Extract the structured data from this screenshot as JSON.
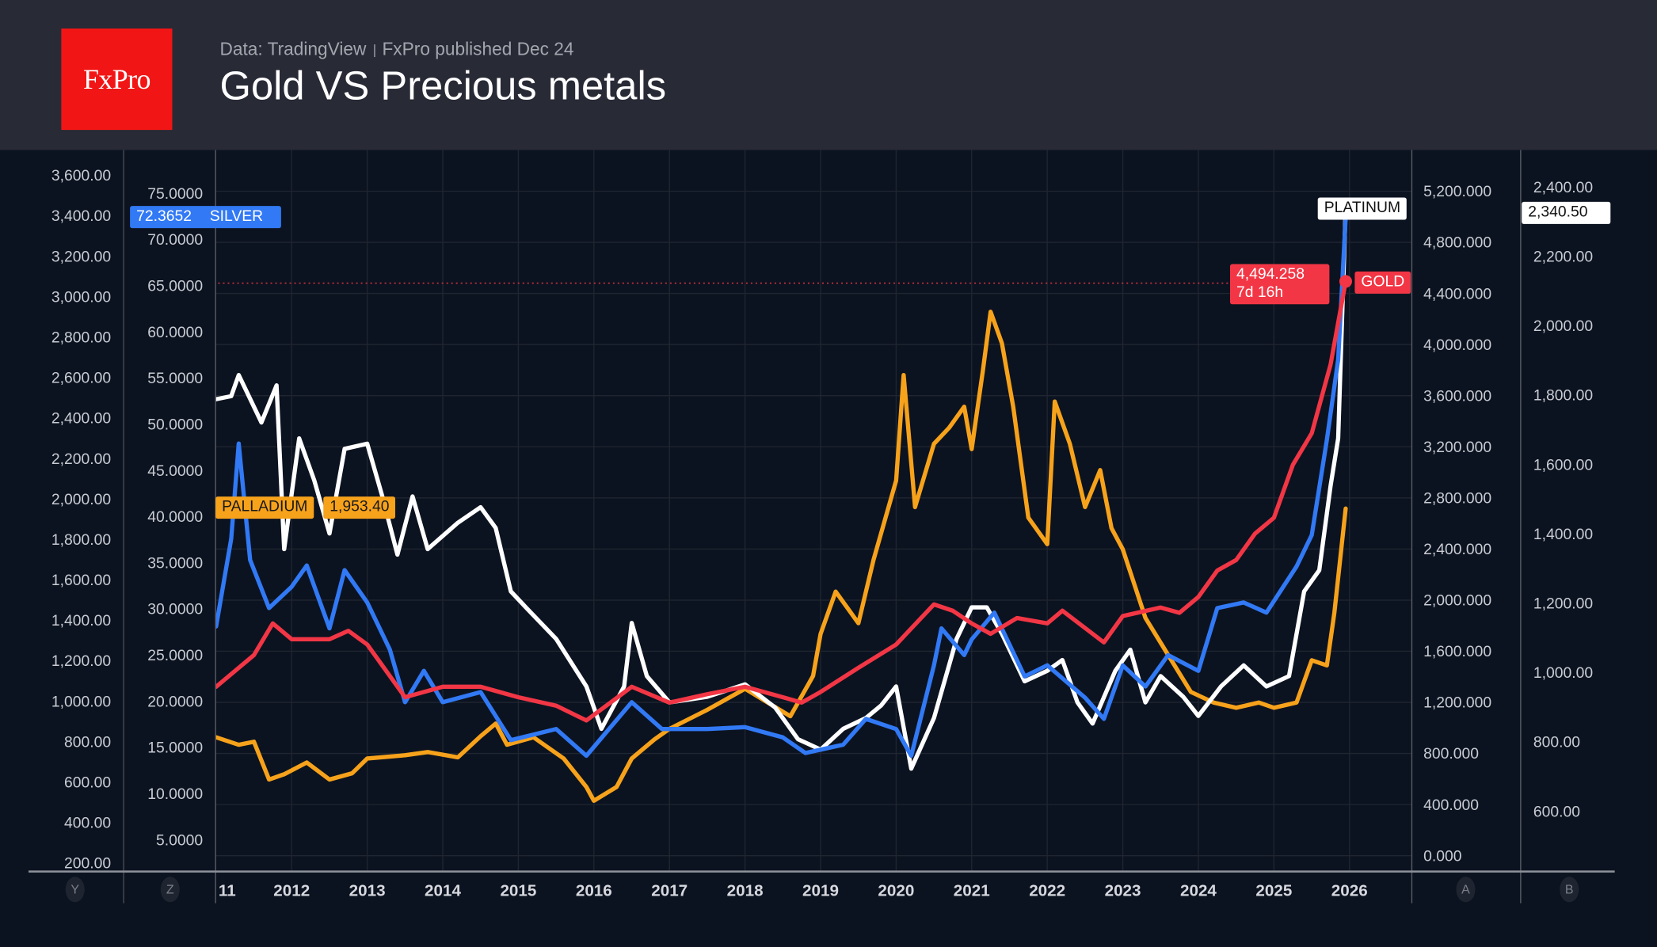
{
  "header": {
    "logo_text": "FxPro",
    "source": "Data: TradingView",
    "published": "FxPro published Dec 24",
    "title": "Gold VS Precious metals"
  },
  "colors": {
    "gold": "#f23645",
    "silver": "#3179f5",
    "platinum": "#ffffff",
    "palladium": "#f7a21b",
    "background": "#0c1320",
    "header": "#282a36"
  },
  "axis_letters": {
    "y": "Y",
    "z": "Z",
    "a": "A",
    "b": "B"
  },
  "badges": {
    "silver_value": "72.3652",
    "silver_label": "SILVER",
    "palladium_value": "1,953.40",
    "palladium_label": "PALLADIUM",
    "platinum_label": "PLATINUM",
    "platinum_value": "2,340.50",
    "gold_label": "GOLD",
    "gold_value": "4,494.258",
    "gold_countdown": "7d 16h"
  },
  "chart_data": {
    "type": "line",
    "title": "Gold VS Precious metals",
    "grid": true,
    "x_ticks": [
      "11",
      "2012",
      "2013",
      "2014",
      "2015",
      "2016",
      "2017",
      "2018",
      "2019",
      "2020",
      "2021",
      "2022",
      "2023",
      "2024",
      "2025",
      "2026"
    ],
    "axes": {
      "Y": {
        "series": "Palladium",
        "range": [
          200,
          3600
        ],
        "ticks": [
          "3,600.00",
          "3,400.00",
          "3,200.00",
          "3,000.00",
          "2,800.00",
          "2,600.00",
          "2,400.00",
          "2,200.00",
          "2,000.00",
          "1,800.00",
          "1,600.00",
          "1,400.00",
          "1,200.00",
          "1,000.00",
          "800.00",
          "600.00",
          "400.00",
          "200.00"
        ]
      },
      "Z": {
        "series": "Silver",
        "range": [
          5,
          75
        ],
        "ticks": [
          "75.0000",
          "70.0000",
          "65.0000",
          "60.0000",
          "55.0000",
          "50.0000",
          "45.0000",
          "40.0000",
          "35.0000",
          "30.0000",
          "25.0000",
          "20.0000",
          "15.0000",
          "10.0000",
          "5.0000"
        ]
      },
      "A": {
        "series": "Gold",
        "range": [
          0,
          5200
        ],
        "ticks": [
          "5,200.000",
          "4,800.000",
          "4,400.000",
          "4,000.000",
          "3,600.000",
          "3,200.000",
          "2,800.000",
          "2,400.000",
          "2,000.000",
          "1,600.000",
          "1,200.000",
          "800.000",
          "400.000",
          "0.000"
        ]
      },
      "B": {
        "series": "Platinum",
        "range": [
          600,
          2400
        ],
        "ticks": [
          "2,400.00",
          "2,200.00",
          "2,000.00",
          "1,800.00",
          "1,600.00",
          "1,400.00",
          "1,200.00",
          "1,000.00",
          "800.00",
          "600.00"
        ]
      }
    },
    "series": [
      {
        "name": "Palladium",
        "axis": "Y",
        "color": "#f7a21b",
        "points": [
          [
            2011.0,
            822
          ],
          [
            2011.3,
            785
          ],
          [
            2011.5,
            800
          ],
          [
            2011.7,
            613
          ],
          [
            2011.9,
            639
          ],
          [
            2012.2,
            697
          ],
          [
            2012.5,
            613
          ],
          [
            2012.8,
            644
          ],
          [
            2013.0,
            717
          ],
          [
            2013.5,
            733
          ],
          [
            2013.8,
            749
          ],
          [
            2014.2,
            723
          ],
          [
            2014.5,
            827
          ],
          [
            2014.7,
            890
          ],
          [
            2014.85,
            785
          ],
          [
            2015.2,
            822
          ],
          [
            2015.6,
            717
          ],
          [
            2015.9,
            576
          ],
          [
            2016.0,
            508
          ],
          [
            2016.3,
            576
          ],
          [
            2016.5,
            717
          ],
          [
            2016.8,
            811
          ],
          [
            2017.0,
            864
          ],
          [
            2017.5,
            958
          ],
          [
            2018.0,
            1062
          ],
          [
            2018.3,
            994
          ],
          [
            2018.6,
            926
          ],
          [
            2018.9,
            1125
          ],
          [
            2019.0,
            1333
          ],
          [
            2019.2,
            1542
          ],
          [
            2019.5,
            1386
          ],
          [
            2019.7,
            1699
          ],
          [
            2020.0,
            2091
          ],
          [
            2020.1,
            2613
          ],
          [
            2020.25,
            1960
          ],
          [
            2020.5,
            2273
          ],
          [
            2020.7,
            2352
          ],
          [
            2020.9,
            2456
          ],
          [
            2021.0,
            2247
          ],
          [
            2021.15,
            2639
          ],
          [
            2021.25,
            2926
          ],
          [
            2021.4,
            2770
          ],
          [
            2021.55,
            2456
          ],
          [
            2021.75,
            1908
          ],
          [
            2022.0,
            1777
          ],
          [
            2022.1,
            2482
          ],
          [
            2022.3,
            2273
          ],
          [
            2022.5,
            1960
          ],
          [
            2022.7,
            2143
          ],
          [
            2022.85,
            1856
          ],
          [
            2023.0,
            1751
          ],
          [
            2023.3,
            1412
          ],
          [
            2023.6,
            1229
          ],
          [
            2023.9,
            1046
          ],
          [
            2024.2,
            994
          ],
          [
            2024.5,
            968
          ],
          [
            2024.8,
            994
          ],
          [
            2025.0,
            968
          ],
          [
            2025.3,
            994
          ],
          [
            2025.5,
            1203
          ],
          [
            2025.7,
            1177
          ],
          [
            2025.8,
            1438
          ],
          [
            2025.95,
            1953
          ]
        ]
      },
      {
        "name": "Platinum",
        "axis": "B",
        "color": "#ffffff",
        "points": [
          [
            2011.0,
            1788
          ],
          [
            2011.2,
            1797
          ],
          [
            2011.3,
            1858
          ],
          [
            2011.6,
            1721
          ],
          [
            2011.8,
            1828
          ],
          [
            2011.9,
            1356
          ],
          [
            2012.1,
            1675
          ],
          [
            2012.3,
            1554
          ],
          [
            2012.5,
            1401
          ],
          [
            2012.7,
            1645
          ],
          [
            2013.0,
            1660
          ],
          [
            2013.2,
            1508
          ],
          [
            2013.4,
            1340
          ],
          [
            2013.6,
            1508
          ],
          [
            2013.8,
            1356
          ],
          [
            2014.2,
            1432
          ],
          [
            2014.5,
            1477
          ],
          [
            2014.7,
            1417
          ],
          [
            2014.9,
            1234
          ],
          [
            2015.1,
            1188
          ],
          [
            2015.5,
            1097
          ],
          [
            2015.9,
            960
          ],
          [
            2016.1,
            838
          ],
          [
            2016.4,
            960
          ],
          [
            2016.5,
            1143
          ],
          [
            2016.7,
            990
          ],
          [
            2017.0,
            914
          ],
          [
            2017.5,
            930
          ],
          [
            2018.0,
            966
          ],
          [
            2018.4,
            899
          ],
          [
            2018.7,
            808
          ],
          [
            2019.0,
            778
          ],
          [
            2019.3,
            838
          ],
          [
            2019.6,
            869
          ],
          [
            2019.8,
            905
          ],
          [
            2020.0,
            960
          ],
          [
            2020.2,
            723
          ],
          [
            2020.5,
            869
          ],
          [
            2020.7,
            1021
          ],
          [
            2020.8,
            1097
          ],
          [
            2021.0,
            1188
          ],
          [
            2021.2,
            1188
          ],
          [
            2021.4,
            1112
          ],
          [
            2021.7,
            975
          ],
          [
            2022.0,
            1005
          ],
          [
            2022.2,
            1036
          ],
          [
            2022.4,
            914
          ],
          [
            2022.6,
            853
          ],
          [
            2022.9,
            1005
          ],
          [
            2023.1,
            1066
          ],
          [
            2023.3,
            914
          ],
          [
            2023.5,
            990
          ],
          [
            2023.8,
            930
          ],
          [
            2024.0,
            875
          ],
          [
            2024.3,
            960
          ],
          [
            2024.6,
            1021
          ],
          [
            2024.9,
            960
          ],
          [
            2025.2,
            990
          ],
          [
            2025.4,
            1234
          ],
          [
            2025.6,
            1295
          ],
          [
            2025.75,
            1538
          ],
          [
            2025.85,
            1675
          ],
          [
            2025.95,
            2340
          ]
        ]
      },
      {
        "name": "Silver",
        "axis": "Z",
        "color": "#3179f5",
        "points": [
          [
            2011.0,
            28.1
          ],
          [
            2011.2,
            37.6
          ],
          [
            2011.3,
            47.9
          ],
          [
            2011.45,
            35.3
          ],
          [
            2011.7,
            30.1
          ],
          [
            2012.0,
            32.4
          ],
          [
            2012.2,
            34.7
          ],
          [
            2012.5,
            27.9
          ],
          [
            2012.7,
            34.2
          ],
          [
            2013.0,
            30.7
          ],
          [
            2013.3,
            25.6
          ],
          [
            2013.5,
            19.9
          ],
          [
            2013.75,
            23.3
          ],
          [
            2014.0,
            19.9
          ],
          [
            2014.5,
            21.0
          ],
          [
            2014.9,
            15.8
          ],
          [
            2015.5,
            17.0
          ],
          [
            2015.9,
            14.1
          ],
          [
            2016.5,
            19.9
          ],
          [
            2016.9,
            17.0
          ],
          [
            2017.5,
            17.0
          ],
          [
            2018.0,
            17.2
          ],
          [
            2018.5,
            16.1
          ],
          [
            2018.8,
            14.4
          ],
          [
            2019.3,
            15.3
          ],
          [
            2019.6,
            18.1
          ],
          [
            2020.0,
            17.0
          ],
          [
            2020.2,
            14.1
          ],
          [
            2020.5,
            23.9
          ],
          [
            2020.6,
            27.9
          ],
          [
            2020.9,
            25.0
          ],
          [
            2021.0,
            26.7
          ],
          [
            2021.3,
            29.6
          ],
          [
            2021.7,
            22.7
          ],
          [
            2022.0,
            23.9
          ],
          [
            2022.5,
            20.4
          ],
          [
            2022.75,
            18.1
          ],
          [
            2023.0,
            23.9
          ],
          [
            2023.3,
            21.6
          ],
          [
            2023.6,
            25.0
          ],
          [
            2024.0,
            23.3
          ],
          [
            2024.25,
            30.1
          ],
          [
            2024.6,
            30.7
          ],
          [
            2024.9,
            29.6
          ],
          [
            2025.3,
            34.6
          ],
          [
            2025.5,
            38.0
          ],
          [
            2025.7,
            48.3
          ],
          [
            2025.85,
            57.0
          ],
          [
            2025.95,
            72.37
          ]
        ]
      },
      {
        "name": "Gold",
        "axis": "A",
        "color": "#f23645",
        "points": [
          [
            2011.0,
            1322
          ],
          [
            2011.5,
            1570
          ],
          [
            2011.75,
            1818
          ],
          [
            2012.0,
            1694
          ],
          [
            2012.5,
            1694
          ],
          [
            2012.75,
            1760
          ],
          [
            2013.0,
            1653
          ],
          [
            2013.5,
            1240
          ],
          [
            2014.0,
            1322
          ],
          [
            2014.5,
            1322
          ],
          [
            2015.0,
            1240
          ],
          [
            2015.5,
            1174
          ],
          [
            2015.9,
            1058
          ],
          [
            2016.5,
            1322
          ],
          [
            2017.0,
            1198
          ],
          [
            2017.5,
            1264
          ],
          [
            2018.0,
            1322
          ],
          [
            2018.5,
            1240
          ],
          [
            2018.75,
            1198
          ],
          [
            2019.0,
            1281
          ],
          [
            2019.5,
            1471
          ],
          [
            2020.0,
            1653
          ],
          [
            2020.5,
            1967
          ],
          [
            2020.75,
            1917
          ],
          [
            2021.0,
            1818
          ],
          [
            2021.25,
            1736
          ],
          [
            2021.6,
            1860
          ],
          [
            2022.0,
            1818
          ],
          [
            2022.2,
            1917
          ],
          [
            2022.75,
            1669
          ],
          [
            2023.0,
            1876
          ],
          [
            2023.5,
            1942
          ],
          [
            2023.75,
            1901
          ],
          [
            2024.0,
            2025
          ],
          [
            2024.25,
            2231
          ],
          [
            2024.5,
            2314
          ],
          [
            2024.75,
            2521
          ],
          [
            2025.0,
            2645
          ],
          [
            2025.25,
            3058
          ],
          [
            2025.5,
            3306
          ],
          [
            2025.75,
            3843
          ],
          [
            2025.95,
            4494
          ]
        ]
      }
    ]
  }
}
